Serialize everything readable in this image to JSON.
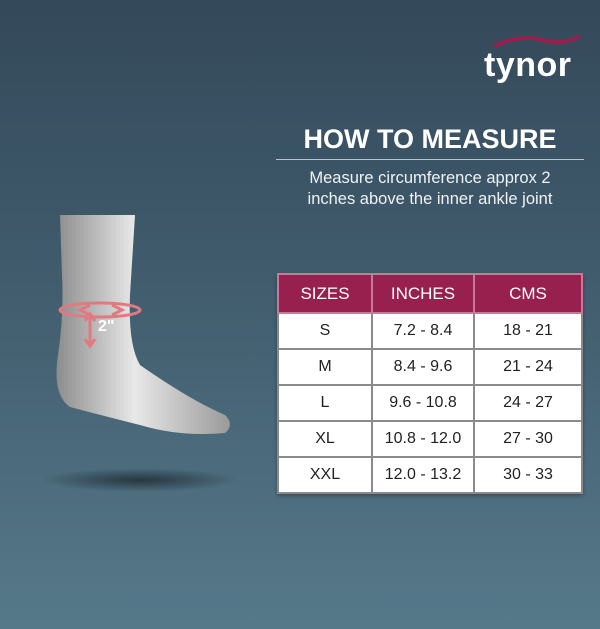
{
  "brand": {
    "name": "tynor",
    "accent": "#97204f"
  },
  "heading": {
    "title": "HOW TO MEASURE",
    "subtitle_line1": "Measure circumference approx 2",
    "subtitle_line2": "inches above the inner ankle joint"
  },
  "illustration": {
    "measure_label": "2\""
  },
  "size_table": {
    "headers": [
      "SIZES",
      "INCHES",
      "CMS"
    ],
    "rows": [
      [
        "S",
        "7.2 - 8.4",
        "18 - 21"
      ],
      [
        "M",
        "8.4 - 9.6",
        "21 - 24"
      ],
      [
        "L",
        "9.6 - 10.8",
        "24 - 27"
      ],
      [
        "XL",
        "10.8 - 12.0",
        "27 - 30"
      ],
      [
        "XXL",
        "12.0 - 13.2",
        "30 - 33"
      ]
    ]
  }
}
